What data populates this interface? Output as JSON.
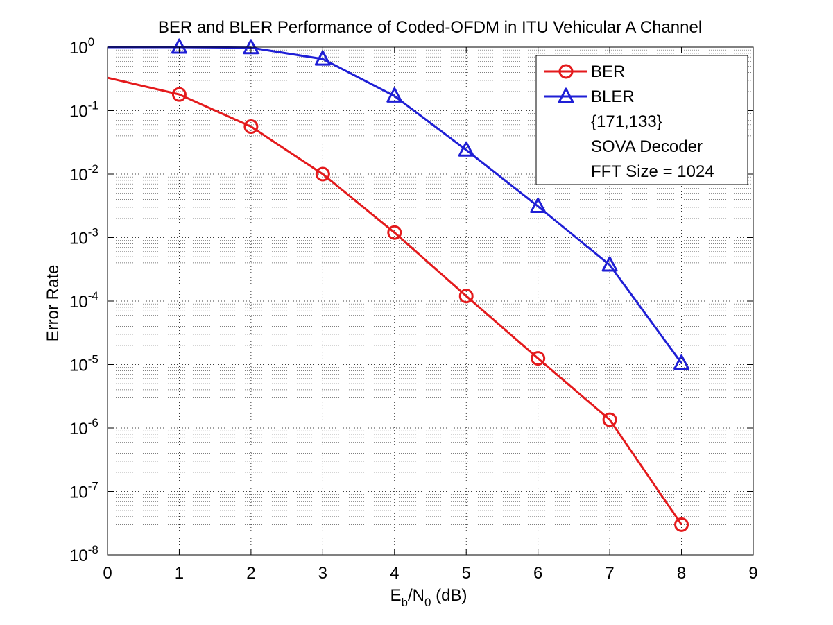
{
  "chart_data": {
    "type": "line",
    "title": "BER and BLER Performance of Coded-OFDM in ITU Vehicular A Channel",
    "xlabel": {
      "main": "E",
      "sub1": "b",
      "mid": "/N",
      "sub2": "0",
      "tail": " (dB)"
    },
    "ylabel": "Error Rate",
    "xlim": [
      0,
      9
    ],
    "ylim": [
      1e-08,
      1
    ],
    "yscale": "log",
    "grid": true,
    "xticks": [
      0,
      1,
      2,
      3,
      4,
      5,
      6,
      7,
      8,
      9
    ],
    "xtick_labels": [
      "0",
      "1",
      "2",
      "3",
      "4",
      "5",
      "6",
      "7",
      "8",
      "9"
    ],
    "yticks": [
      {
        "base": "10",
        "exp": "-8",
        "value": 1e-08
      },
      {
        "base": "10",
        "exp": "-7",
        "value": 1e-07
      },
      {
        "base": "10",
        "exp": "-6",
        "value": 1e-06
      },
      {
        "base": "10",
        "exp": "-5",
        "value": 1e-05
      },
      {
        "base": "10",
        "exp": "-4",
        "value": 0.0001
      },
      {
        "base": "10",
        "exp": "-3",
        "value": 0.001
      },
      {
        "base": "10",
        "exp": "-2",
        "value": 0.01
      },
      {
        "base": "10",
        "exp": "-1",
        "value": 0.1
      },
      {
        "base": "10",
        "exp": "0",
        "value": 1
      }
    ],
    "series": [
      {
        "name": "BER",
        "color": "#e41a1c",
        "marker": "circle",
        "x": [
          0,
          1,
          2,
          3,
          4,
          5,
          6,
          7,
          8
        ],
        "y": [
          0.33,
          0.18,
          0.056,
          0.01,
          0.0012,
          0.00012,
          1.25e-05,
          1.35e-06,
          3e-08
        ]
      },
      {
        "name": "BLER",
        "color": "#1f1fd6",
        "marker": "triangle",
        "x": [
          0,
          1,
          2,
          3,
          4,
          5,
          6,
          7,
          8
        ],
        "y": [
          1,
          1,
          0.98,
          0.65,
          0.17,
          0.024,
          0.0031,
          0.00037,
          1.05e-05
        ]
      }
    ],
    "legend": {
      "placement": "top-right",
      "notes": [
        "{171,133}",
        "SOVA Decoder",
        "FFT Size = 1024"
      ]
    }
  }
}
